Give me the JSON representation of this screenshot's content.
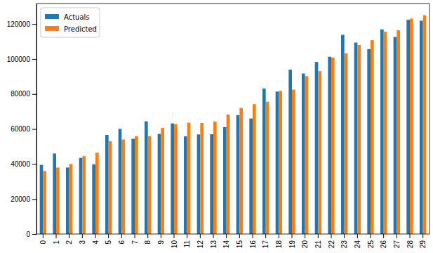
{
  "chart_data": {
    "type": "bar",
    "categories": [
      "0",
      "1",
      "2",
      "3",
      "4",
      "5",
      "6",
      "7",
      "8",
      "9",
      "10",
      "11",
      "12",
      "13",
      "14",
      "15",
      "16",
      "17",
      "18",
      "19",
      "20",
      "21",
      "22",
      "23",
      "24",
      "25",
      "26",
      "27",
      "28",
      "29"
    ],
    "series": [
      {
        "name": "Actuals",
        "color": "#1f77b4",
        "values": [
          39500,
          46000,
          38000,
          43500,
          39800,
          56600,
          60100,
          54400,
          64400,
          57200,
          63200,
          55800,
          56900,
          57000,
          61100,
          67900,
          66000,
          83100,
          81400,
          93900,
          91700,
          98300,
          101300,
          113800,
          109400,
          105600,
          116900,
          112600,
          122400,
          121900
        ]
      },
      {
        "name": "Predicted",
        "color": "#ff7f0e",
        "values": [
          36000,
          38000,
          40000,
          44500,
          46500,
          53000,
          54000,
          55800,
          56000,
          60600,
          62800,
          63600,
          63400,
          64300,
          68300,
          72000,
          74200,
          75600,
          81800,
          82500,
          90200,
          93100,
          100800,
          103300,
          108000,
          110800,
          115600,
          116400,
          123100,
          125000
        ]
      }
    ],
    "ylim": [
      0,
      131700
    ],
    "yticks": [
      0,
      20000,
      40000,
      60000,
      80000,
      100000,
      120000
    ],
    "legend": "upper left",
    "grid": false
  }
}
